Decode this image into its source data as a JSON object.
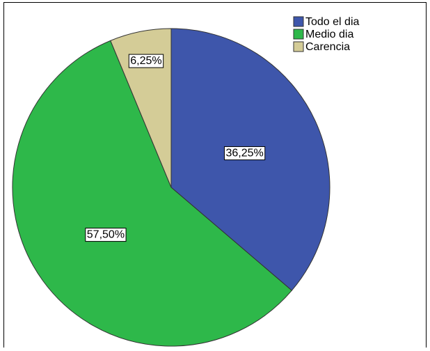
{
  "chart_data": {
    "type": "pie",
    "categories": [
      "Todo el dia",
      "Medio dia",
      "Carencia"
    ],
    "values": [
      36.25,
      57.5,
      6.25
    ],
    "value_labels": [
      "36,25%",
      "57,50%",
      "6,25%"
    ],
    "colors": [
      "#3e56ab",
      "#2eb84a",
      "#d4cc97"
    ],
    "legend": "upper right"
  }
}
